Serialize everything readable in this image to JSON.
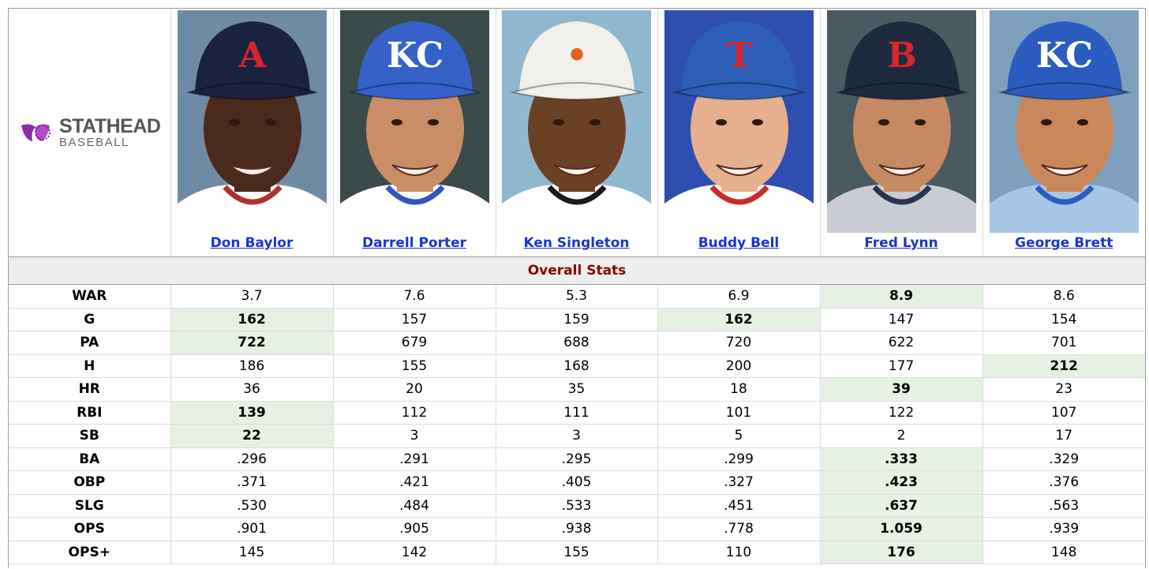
{
  "brand": {
    "logo_main": "STATHEAD",
    "logo_sub": "BASEBALL"
  },
  "players": [
    {
      "name": "Don Baylor",
      "bg": "#6f8aa3",
      "cap": "#1b2340",
      "skin": "#4a2a1c",
      "jersey": "#ffffff",
      "trim": "#b03030",
      "cap_letter": "A",
      "letter_color": "#d6262b"
    },
    {
      "name": "Darrell Porter",
      "bg": "#3a4a4a",
      "cap": "#3561c9",
      "skin": "#c98e68",
      "jersey": "#ffffff",
      "trim": "#2f56b8",
      "cap_letter": "KC",
      "letter_color": "#ffffff"
    },
    {
      "name": "Ken Singleton",
      "bg": "#8fb8cf",
      "cap": "#f2f0ea",
      "skin": "#6b4126",
      "jersey": "#ffffff",
      "trim": "#1b1b1b",
      "cap_letter": "•",
      "letter_color": "#e2621b"
    },
    {
      "name": "Buddy Bell",
      "bg": "#2f4fb0",
      "cap": "#2e5fb8",
      "skin": "#e6b08e",
      "jersey": "#ffffff",
      "trim": "#c92b2b",
      "cap_letter": "T",
      "letter_color": "#d6262b"
    },
    {
      "name": "Fred Lynn",
      "bg": "#4a5a60",
      "cap": "#1f2a3f",
      "skin": "#c68a62",
      "jersey": "#c9ccd2",
      "trim": "#2a3550",
      "cap_letter": "B",
      "letter_color": "#d6262b"
    },
    {
      "name": "George Brett",
      "bg": "#7fa0bd",
      "cap": "#2c5cc0",
      "skin": "#c9875c",
      "jersey": "#a8c7e6",
      "trim": "#2c5cc0",
      "cap_letter": "KC",
      "letter_color": "#ffffff"
    }
  ],
  "section_title": "Overall Stats",
  "colors": {
    "leader_bg": "#e6f1e4",
    "link": "#1a35d0",
    "section_text": "#8b0000"
  },
  "stats": [
    {
      "label": "WAR",
      "values": [
        "3.7",
        "7.6",
        "5.3",
        "6.9",
        "8.9",
        "8.6"
      ],
      "leaders": [
        4
      ]
    },
    {
      "label": "G",
      "values": [
        "162",
        "157",
        "159",
        "162",
        "147",
        "154"
      ],
      "leaders": [
        0,
        3
      ]
    },
    {
      "label": "PA",
      "values": [
        "722",
        "679",
        "688",
        "720",
        "622",
        "701"
      ],
      "leaders": [
        0
      ]
    },
    {
      "label": "H",
      "values": [
        "186",
        "155",
        "168",
        "200",
        "177",
        "212"
      ],
      "leaders": [
        5
      ]
    },
    {
      "label": "HR",
      "values": [
        "36",
        "20",
        "35",
        "18",
        "39",
        "23"
      ],
      "leaders": [
        4
      ]
    },
    {
      "label": "RBI",
      "values": [
        "139",
        "112",
        "111",
        "101",
        "122",
        "107"
      ],
      "leaders": [
        0
      ]
    },
    {
      "label": "SB",
      "values": [
        "22",
        "3",
        "3",
        "5",
        "2",
        "17"
      ],
      "leaders": [
        0
      ]
    },
    {
      "label": "BA",
      "values": [
        ".296",
        ".291",
        ".295",
        ".299",
        ".333",
        ".329"
      ],
      "leaders": [
        4
      ]
    },
    {
      "label": "OBP",
      "values": [
        ".371",
        ".421",
        ".405",
        ".327",
        ".423",
        ".376"
      ],
      "leaders": [
        4
      ]
    },
    {
      "label": "SLG",
      "values": [
        ".530",
        ".484",
        ".533",
        ".451",
        ".637",
        ".563"
      ],
      "leaders": [
        4
      ]
    },
    {
      "label": "OPS",
      "values": [
        ".901",
        ".905",
        ".938",
        ".778",
        "1.059",
        ".939"
      ],
      "leaders": [
        4
      ]
    },
    {
      "label": "OPS+",
      "values": [
        "145",
        "142",
        "155",
        "110",
        "176",
        "148"
      ],
      "leaders": [
        4
      ]
    }
  ]
}
